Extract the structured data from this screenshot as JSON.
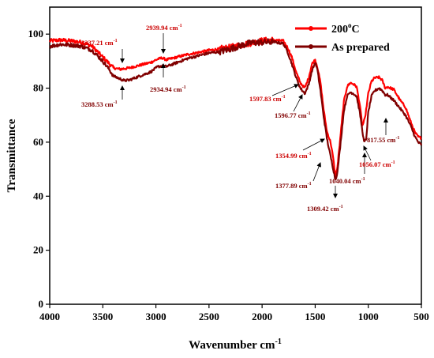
{
  "chart_data": {
    "type": "line",
    "xlabel": "Wavenumber cm",
    "xlabel_sup": "-1",
    "ylabel": "Transmittance",
    "xlim": [
      4000,
      500
    ],
    "xdir": "reversed",
    "ylim": [
      0,
      110
    ],
    "xticks": [
      "4000",
      "3500",
      "3000",
      "2500",
      "2000",
      "1500",
      "1000",
      "500"
    ],
    "yticks": [
      "0",
      "20",
      "40",
      "60",
      "80",
      "100"
    ],
    "legend_position": "top-right",
    "series": [
      {
        "name": "200",
        "name_sup": "o",
        "name_suffix": "C",
        "color": "#ff0000",
        "x": [
          4000,
          3900,
          3800,
          3700,
          3600,
          3500,
          3450,
          3400,
          3337,
          3250,
          3150,
          3050,
          2980,
          2940,
          2900,
          2800,
          2700,
          2600,
          2500,
          2400,
          2300,
          2200,
          2100,
          2000,
          1900,
          1800,
          1760,
          1720,
          1680,
          1640,
          1598,
          1560,
          1530,
          1500,
          1480,
          1450,
          1420,
          1390,
          1355,
          1330,
          1309,
          1290,
          1260,
          1230,
          1200,
          1170,
          1140,
          1110,
          1080,
          1056,
          1030,
          1000,
          970,
          940,
          900,
          870,
          840,
          818,
          790,
          760,
          700,
          650,
          600,
          560,
          530,
          500
        ],
        "y": [
          97.5,
          97.8,
          97.5,
          97,
          95.5,
          91.5,
          89.5,
          87.5,
          87,
          87.5,
          88.5,
          89.5,
          90.8,
          91.2,
          90.5,
          91.5,
          92.5,
          93.2,
          94,
          94.5,
          95,
          96,
          96.8,
          97.5,
          97.8,
          97.5,
          95,
          91.5,
          86,
          82,
          80,
          84,
          89,
          90.5,
          88,
          82,
          72,
          64,
          60,
          54,
          47,
          51,
          63,
          75,
          80.5,
          82,
          81.5,
          80.5,
          74,
          66,
          69,
          78,
          82.5,
          83.8,
          84,
          83,
          80,
          80.5,
          80,
          79.5,
          75.5,
          73,
          67.5,
          63.5,
          62,
          61.5
        ]
      },
      {
        "name": "As prepared",
        "color": "#800000",
        "x": [
          4000,
          3900,
          3800,
          3700,
          3600,
          3500,
          3450,
          3400,
          3300,
          3250,
          3150,
          3050,
          2980,
          2935,
          2900,
          2800,
          2700,
          2600,
          2500,
          2400,
          2300,
          2200,
          2100,
          2000,
          1900,
          1800,
          1760,
          1720,
          1680,
          1640,
          1597,
          1560,
          1530,
          1500,
          1480,
          1450,
          1420,
          1390,
          1378,
          1340,
          1309,
          1290,
          1260,
          1230,
          1200,
          1170,
          1140,
          1110,
          1080,
          1040,
          1020,
          1000,
          970,
          940,
          900,
          870,
          840,
          818,
          790,
          760,
          700,
          650,
          600,
          560,
          530,
          500
        ],
        "y": [
          95.5,
          96.2,
          96,
          95.5,
          94,
          90,
          87.5,
          84.5,
          82.8,
          83,
          84.5,
          86,
          88,
          88.2,
          88,
          89.5,
          91,
          92,
          93,
          93.5,
          94.5,
          95.8,
          96.8,
          97,
          97.2,
          96.5,
          93.5,
          89,
          84,
          80,
          78,
          81.5,
          86.5,
          89.5,
          87,
          79,
          69.5,
          61.5,
          59,
          52,
          46,
          49,
          60,
          71.5,
          77,
          78.5,
          78,
          77,
          71,
          60,
          61,
          71,
          77,
          79,
          80,
          79.2,
          77.5,
          77.5,
          76.5,
          75.5,
          72.5,
          70,
          66,
          62,
          60,
          59
        ]
      }
    ],
    "annotations": [
      {
        "text": "3337.21 cm",
        "sup": "-1",
        "color": "#cc0000",
        "ref": "series0",
        "x": 3337
      },
      {
        "text": "2939.94 cm",
        "sup": "-1",
        "color": "#cc0000",
        "ref": "series0",
        "x": 2940
      },
      {
        "text": "3288.53 cm",
        "sup": "-1",
        "color": "#800000",
        "ref": "series1",
        "x": 3300
      },
      {
        "text": "2934.94 cm",
        "sup": "-1",
        "color": "#800000",
        "ref": "series1",
        "x": 2935
      },
      {
        "text": "1597.83 cm",
        "sup": "-1",
        "color": "#cc0000",
        "ref": "series0",
        "x": 1598
      },
      {
        "text": "1596.77 cm",
        "sup": "-1",
        "color": "#800000",
        "ref": "series1",
        "x": 1597
      },
      {
        "text": "1354.99 cm",
        "sup": "-1",
        "color": "#cc0000",
        "ref": "series0",
        "x": 1355
      },
      {
        "text": "1377.89 cm",
        "sup": "-1",
        "color": "#800000",
        "ref": "series1",
        "x": 1378
      },
      {
        "text": "1309.42 cm",
        "sup": "-1",
        "color": "#800000",
        "ref": "series1",
        "x": 1309
      },
      {
        "text": "1040.04 cm",
        "sup": "-1",
        "color": "#800000",
        "ref": "series1",
        "x": 1040
      },
      {
        "text": "1056.07 cm",
        "sup": "-1",
        "color": "#cc0000",
        "ref": "series0",
        "x": 1056
      },
      {
        "text": "817.55 cm",
        "sup": "-1",
        "color": "#800000",
        "ref": "series1",
        "x": 818
      }
    ]
  }
}
